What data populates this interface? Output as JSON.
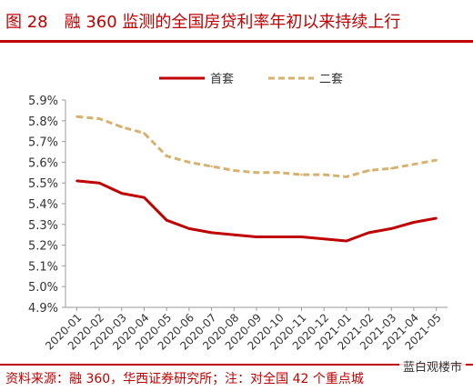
{
  "header": {
    "title": "图 28　融 360 监测的全国房贷利率年初以来持续上行"
  },
  "footer": {
    "source": "资料来源：融 360，华西证券研究所；注：对全国 42 个重点城",
    "watermark": "蓝白观楼市"
  },
  "colors": {
    "accent": "#c00000",
    "first_home": "#c00000",
    "second_home": "#d6b26e"
  },
  "chart_data": {
    "type": "line",
    "categories": [
      "2020-01",
      "2020-02",
      "2020-03",
      "2020-04",
      "2020-05",
      "2020-06",
      "2020-07",
      "2020-08",
      "2020-09",
      "2020-10",
      "2020-11",
      "2020-12",
      "2021-01",
      "2021-02",
      "2021-03",
      "2021-04",
      "2021-05"
    ],
    "series": [
      {
        "name": "首套",
        "style": "solid",
        "values": [
          5.51,
          5.5,
          5.45,
          5.43,
          5.32,
          5.28,
          5.26,
          5.25,
          5.24,
          5.24,
          5.24,
          5.23,
          5.22,
          5.26,
          5.28,
          5.31,
          5.33
        ]
      },
      {
        "name": "二套",
        "style": "dashed",
        "values": [
          5.82,
          5.81,
          5.77,
          5.74,
          5.63,
          5.6,
          5.58,
          5.56,
          5.55,
          5.55,
          5.54,
          5.54,
          5.53,
          5.56,
          5.57,
          5.59,
          5.61
        ]
      }
    ],
    "yticks": [
      "4.9%",
      "5.0%",
      "5.1%",
      "5.2%",
      "5.3%",
      "5.4%",
      "5.5%",
      "5.6%",
      "5.7%",
      "5.8%",
      "5.9%"
    ],
    "ylim": [
      4.9,
      5.9
    ],
    "grid": false,
    "legend": "top-center"
  }
}
